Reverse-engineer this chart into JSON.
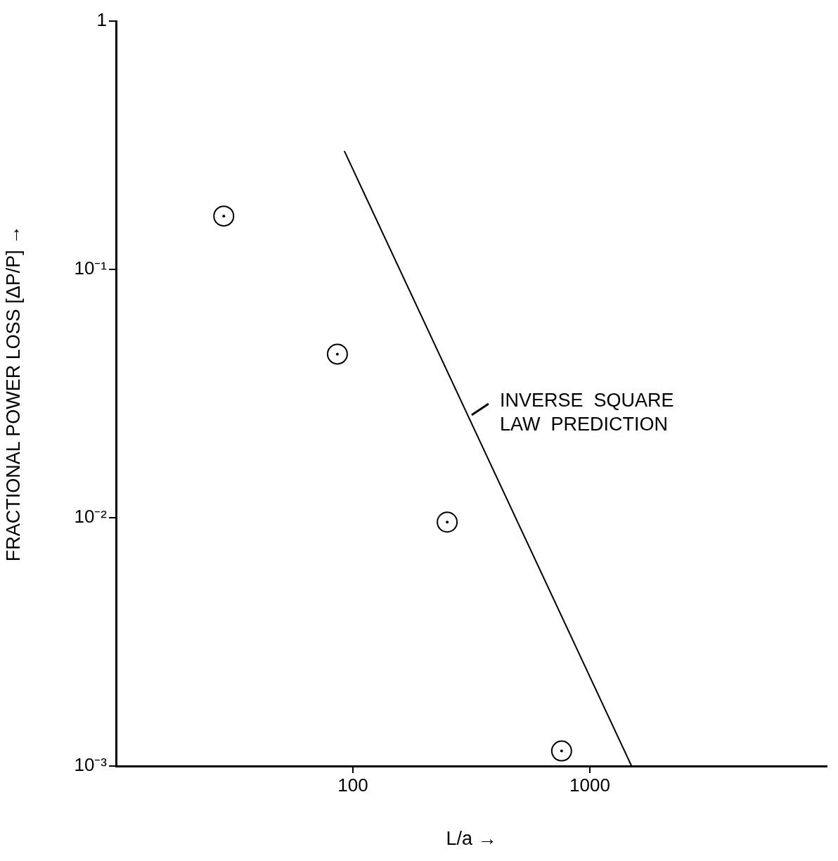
{
  "chart_data": {
    "type": "scatter",
    "xlabel": "L/a →",
    "ylabel": "FRACTIONAL POWER LOSS [ΔP/P] →",
    "log": "xy",
    "xlim": [
      10,
      10000
    ],
    "ylim": [
      0.001,
      1
    ],
    "xticks": [
      100,
      1000
    ],
    "yticks": [
      {
        "value": 0.001,
        "label": "10⁻³"
      },
      {
        "value": 0.01,
        "label": "10⁻²"
      },
      {
        "value": 0.1,
        "label": "10⁻¹"
      },
      {
        "value": 1,
        "label": "1"
      }
    ],
    "grid": false,
    "series": [
      {
        "type": "scatter",
        "color": "#000000",
        "marker": "circle",
        "x": [
          28.5,
          86,
          250,
          760
        ],
        "values": [
          0.164,
          0.0456,
          0.0096,
          0.00115
        ]
      },
      {
        "type": "line",
        "color": "#000000",
        "marker": "none",
        "line_style": "solid",
        "x": [
          92,
          1500
        ],
        "values": [
          0.3,
          0.001
        ]
      }
    ],
    "annotations": [
      "INVERSE SQUARE LAW PREDICTION"
    ]
  }
}
